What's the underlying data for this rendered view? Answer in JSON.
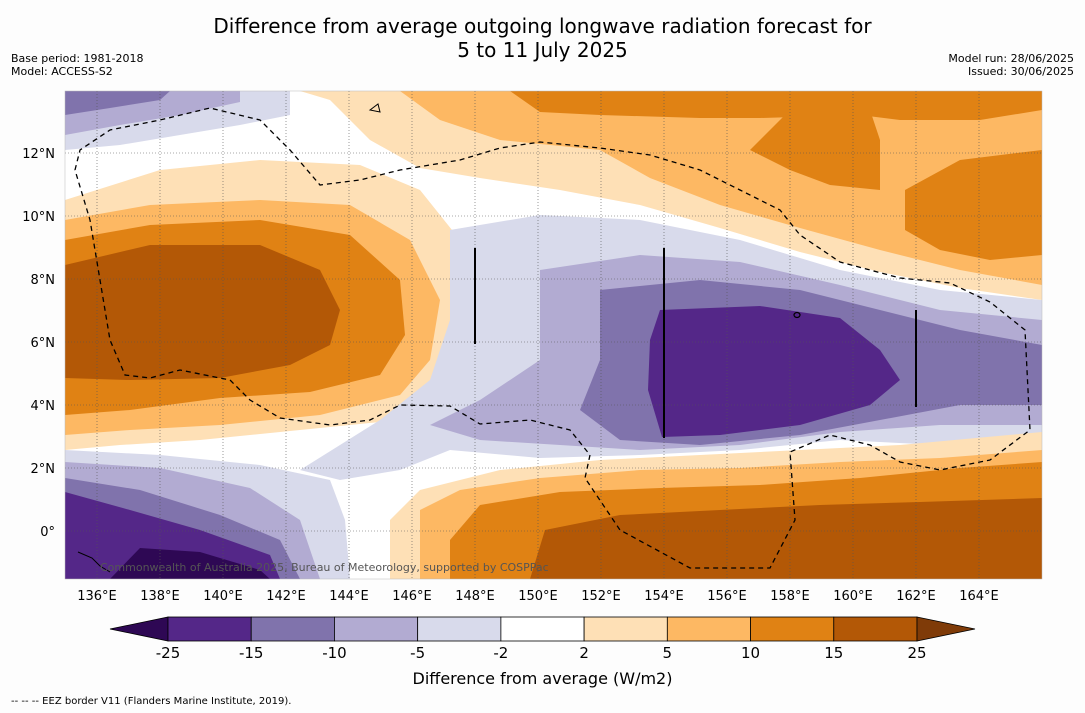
{
  "title": {
    "line1": "Difference from average outgoing longwave radiation forecast for",
    "line2": "5 to 11 July 2025"
  },
  "meta_left": {
    "base_period": "Base period: 1981-2018",
    "model": "Model: ACCESS-S2"
  },
  "meta_right": {
    "model_run": "Model run: 28/06/2025",
    "issued": "Issued: 30/06/2025"
  },
  "axes": {
    "lat_labels": [
      "12°N",
      "10°N",
      "8°N",
      "6°N",
      "4°N",
      "2°N",
      "0°"
    ],
    "lon_labels": [
      "136°E",
      "138°E",
      "140°E",
      "142°E",
      "144°E",
      "146°E",
      "148°E",
      "150°E",
      "152°E",
      "154°E",
      "156°E",
      "158°E",
      "160°E",
      "162°E",
      "164°E"
    ]
  },
  "copyright": "Commonwealth of Australia 2025, Bureau of Meteorology, supported by COSPPac",
  "colorbar": {
    "title": "Difference from average (W/m2)",
    "tick_labels": [
      "-25",
      "-15",
      "-10",
      "-5",
      "-2",
      "2",
      "5",
      "10",
      "15",
      "25"
    ],
    "colors": [
      "#2e0854",
      "#542788",
      "#8073ac",
      "#b2abd2",
      "#d8daeb",
      "#ffffff",
      "#fee0b6",
      "#fdb863",
      "#e08214",
      "#b35806",
      "#7f3b08"
    ]
  },
  "legend": {
    "eez": "--  --  -- EEZ border V11 (Flanders Marine Institute, 2019)."
  }
}
